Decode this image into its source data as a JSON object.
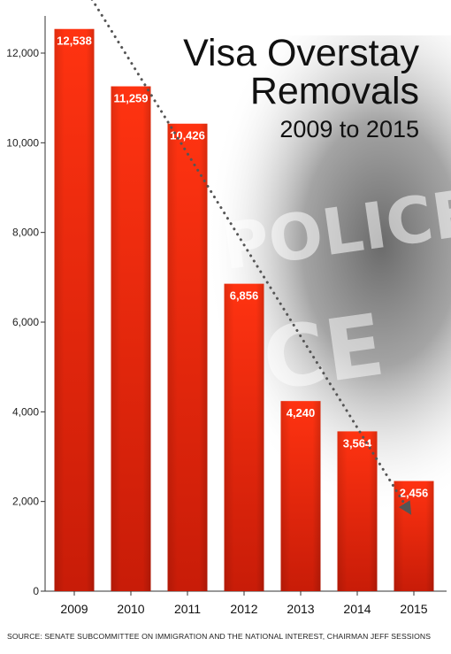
{
  "title": {
    "line1": "Visa Overstay",
    "line2": "Removals",
    "subtitle": "2009 to 2015"
  },
  "background_text": {
    "word1": "POLICE",
    "word2": "ICE"
  },
  "source": "SOURCE: SENATE SUBCOMMITTEE ON IMMIGRATION AND THE NATIONAL INTEREST, CHAIRMAN JEFF SESSIONS",
  "colors": {
    "bar_top": "#ff3311",
    "bar_bottom": "#c81c08",
    "trend": "#555555"
  },
  "chart_data": {
    "type": "bar",
    "categories": [
      "2009",
      "2010",
      "2011",
      "2012",
      "2013",
      "2014",
      "2015"
    ],
    "values": [
      12538,
      11259,
      10426,
      6856,
      4240,
      3564,
      2456
    ],
    "data_labels": [
      "12,538",
      "11,259",
      "10,426",
      "6,856",
      "4,240",
      "3,564",
      "2,456"
    ],
    "ylim": [
      0,
      13000
    ],
    "yticks": [
      0,
      2000,
      4000,
      6000,
      8000,
      10000,
      12000
    ],
    "ytick_labels": [
      "0",
      "2,000",
      "4,000",
      "6,000",
      "8,000",
      "10,000",
      "12,000"
    ],
    "xlabel": "",
    "ylabel": "",
    "grid": false,
    "trendline": {
      "from_value": 13200,
      "to_value": 1800,
      "arrow": true
    }
  }
}
